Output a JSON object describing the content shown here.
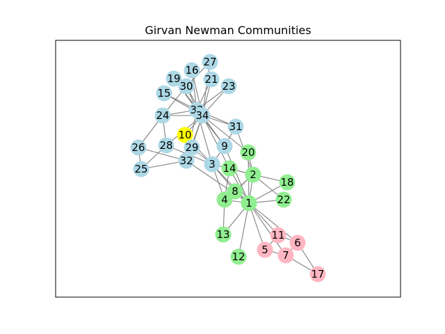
{
  "figure": {
    "title": "Girvan Newman Communities"
  },
  "colors": {
    "edge": "#808080",
    "frame": "#000000",
    "community_a": "#add8e6",
    "community_b": "#90ee90",
    "community_c": "#ffb6c1",
    "community_d": "#ffff00"
  },
  "graph": {
    "nodes": [
      {
        "id": "1",
        "community": "community_b"
      },
      {
        "id": "2",
        "community": "community_b"
      },
      {
        "id": "3",
        "community": "community_a"
      },
      {
        "id": "4",
        "community": "community_b"
      },
      {
        "id": "5",
        "community": "community_c"
      },
      {
        "id": "6",
        "community": "community_c"
      },
      {
        "id": "7",
        "community": "community_c"
      },
      {
        "id": "8",
        "community": "community_b"
      },
      {
        "id": "9",
        "community": "community_a"
      },
      {
        "id": "10",
        "community": "community_d"
      },
      {
        "id": "11",
        "community": "community_c"
      },
      {
        "id": "12",
        "community": "community_b"
      },
      {
        "id": "13",
        "community": "community_b"
      },
      {
        "id": "14",
        "community": "community_b"
      },
      {
        "id": "15",
        "community": "community_a"
      },
      {
        "id": "16",
        "community": "community_a"
      },
      {
        "id": "17",
        "community": "community_c"
      },
      {
        "id": "18",
        "community": "community_b"
      },
      {
        "id": "19",
        "community": "community_a"
      },
      {
        "id": "20",
        "community": "community_b"
      },
      {
        "id": "21",
        "community": "community_a"
      },
      {
        "id": "22",
        "community": "community_b"
      },
      {
        "id": "23",
        "community": "community_a"
      },
      {
        "id": "24",
        "community": "community_a"
      },
      {
        "id": "25",
        "community": "community_a"
      },
      {
        "id": "26",
        "community": "community_a"
      },
      {
        "id": "27",
        "community": "community_a"
      },
      {
        "id": "28",
        "community": "community_a"
      },
      {
        "id": "29",
        "community": "community_a"
      },
      {
        "id": "30",
        "community": "community_a"
      },
      {
        "id": "31",
        "community": "community_a"
      },
      {
        "id": "32",
        "community": "community_a"
      },
      {
        "id": "33",
        "community": "community_a"
      },
      {
        "id": "34",
        "community": "community_a"
      }
    ],
    "edges": [
      [
        "1",
        "2"
      ],
      [
        "1",
        "3"
      ],
      [
        "1",
        "4"
      ],
      [
        "1",
        "5"
      ],
      [
        "1",
        "6"
      ],
      [
        "1",
        "7"
      ],
      [
        "1",
        "8"
      ],
      [
        "1",
        "9"
      ],
      [
        "1",
        "11"
      ],
      [
        "1",
        "12"
      ],
      [
        "1",
        "13"
      ],
      [
        "1",
        "14"
      ],
      [
        "1",
        "18"
      ],
      [
        "1",
        "20"
      ],
      [
        "1",
        "22"
      ],
      [
        "1",
        "32"
      ],
      [
        "2",
        "3"
      ],
      [
        "2",
        "4"
      ],
      [
        "2",
        "8"
      ],
      [
        "2",
        "14"
      ],
      [
        "2",
        "18"
      ],
      [
        "2",
        "20"
      ],
      [
        "2",
        "22"
      ],
      [
        "2",
        "31"
      ],
      [
        "3",
        "4"
      ],
      [
        "3",
        "8"
      ],
      [
        "3",
        "9"
      ],
      [
        "3",
        "10"
      ],
      [
        "3",
        "14"
      ],
      [
        "3",
        "28"
      ],
      [
        "3",
        "29"
      ],
      [
        "3",
        "33"
      ],
      [
        "4",
        "8"
      ],
      [
        "4",
        "13"
      ],
      [
        "4",
        "14"
      ],
      [
        "5",
        "7"
      ],
      [
        "5",
        "11"
      ],
      [
        "6",
        "7"
      ],
      [
        "6",
        "11"
      ],
      [
        "6",
        "17"
      ],
      [
        "7",
        "17"
      ],
      [
        "9",
        "31"
      ],
      [
        "9",
        "33"
      ],
      [
        "9",
        "34"
      ],
      [
        "10",
        "34"
      ],
      [
        "14",
        "34"
      ],
      [
        "15",
        "33"
      ],
      [
        "15",
        "34"
      ],
      [
        "16",
        "33"
      ],
      [
        "16",
        "34"
      ],
      [
        "19",
        "33"
      ],
      [
        "19",
        "34"
      ],
      [
        "20",
        "34"
      ],
      [
        "21",
        "33"
      ],
      [
        "21",
        "34"
      ],
      [
        "23",
        "33"
      ],
      [
        "23",
        "34"
      ],
      [
        "24",
        "26"
      ],
      [
        "24",
        "28"
      ],
      [
        "24",
        "30"
      ],
      [
        "24",
        "33"
      ],
      [
        "24",
        "34"
      ],
      [
        "25",
        "26"
      ],
      [
        "25",
        "28"
      ],
      [
        "25",
        "32"
      ],
      [
        "26",
        "32"
      ],
      [
        "27",
        "30"
      ],
      [
        "27",
        "34"
      ],
      [
        "28",
        "34"
      ],
      [
        "29",
        "32"
      ],
      [
        "29",
        "34"
      ],
      [
        "30",
        "33"
      ],
      [
        "30",
        "34"
      ],
      [
        "31",
        "33"
      ],
      [
        "31",
        "34"
      ],
      [
        "32",
        "33"
      ],
      [
        "32",
        "34"
      ],
      [
        "33",
        "34"
      ]
    ]
  }
}
